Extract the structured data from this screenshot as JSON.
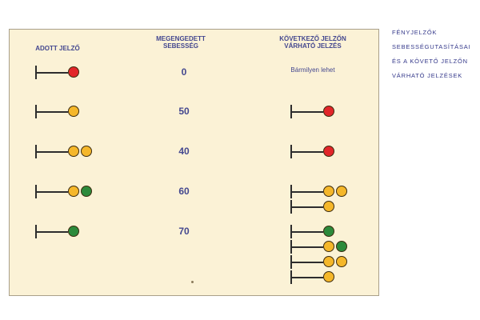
{
  "colors": {
    "panel": "#fbf2d6",
    "text": "#43478f",
    "pole": "#2d2d2d",
    "red": "#e2262a",
    "yellow": "#f5b72a",
    "green": "#2c8a3b"
  },
  "side_caption": [
    "fényjelzők",
    "sebességutasításai",
    "és a követő jelzőn",
    "várható jelzések"
  ],
  "headers": {
    "given": "ADOTT JELZŐ",
    "speed": "MEGENGEDETT SEBESSÉG",
    "next": "KÖVETKEZŐ JELZŐN VÁRHATÓ JELZÉS"
  },
  "rows": [
    {
      "lamps": [
        "red"
      ],
      "speed": "0",
      "next_text": "Bármilyen lehet",
      "next": []
    },
    {
      "lamps": [
        "yellow"
      ],
      "speed": "50",
      "next_text": "",
      "next": [
        [
          "red"
        ]
      ]
    },
    {
      "lamps": [
        "yellow",
        "yellow"
      ],
      "speed": "40",
      "next_text": "",
      "next": [
        [
          "red"
        ]
      ]
    },
    {
      "lamps": [
        "yellow",
        "green"
      ],
      "speed": "60",
      "next_text": "",
      "next": [
        [
          "yellow",
          "yellow"
        ],
        [
          "yellow"
        ]
      ]
    },
    {
      "lamps": [
        "green"
      ],
      "speed": "70",
      "next_text": "",
      "next": [
        [
          "green"
        ],
        [
          "yellow",
          "green"
        ],
        [
          "yellow",
          "yellow"
        ],
        [
          "yellow"
        ]
      ]
    }
  ]
}
